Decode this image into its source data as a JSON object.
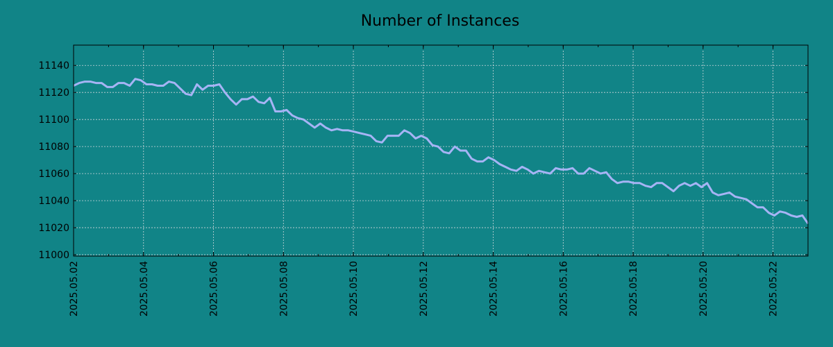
{
  "chart_data": {
    "type": "line",
    "title": "Number of Instances",
    "xlabel": "",
    "ylabel": "",
    "x_start": "2025.05.02",
    "x_end": "2025.05.23",
    "xlim": [
      "2025.05.02",
      "2025.05.23"
    ],
    "ylim": [
      10999,
      11155
    ],
    "grid": true,
    "x_ticks": [
      "2025.05.02",
      "2025.05.04",
      "2025.05.06",
      "2025.05.08",
      "2025.05.10",
      "2025.05.12",
      "2025.05.14",
      "2025.05.16",
      "2025.05.18",
      "2025.05.20",
      "2025.05.22"
    ],
    "y_ticks": [
      11000,
      11020,
      11040,
      11060,
      11080,
      11100,
      11120,
      11140
    ],
    "series": [
      {
        "color": "#a6b4f5",
        "values": [
          11125,
          11127,
          11128,
          11128,
          11127,
          11127,
          11124,
          11124,
          11127,
          11127,
          11125,
          11130,
          11129,
          11126,
          11126,
          11125,
          11125,
          11128,
          11127,
          11123,
          11119,
          11118,
          11126,
          11122,
          11125,
          11125,
          11126,
          11120,
          11115,
          11111,
          11115,
          11115,
          11117,
          11113,
          11112,
          11116,
          11106,
          11106,
          11107,
          11103,
          11101,
          11100,
          11097,
          11094,
          11097,
          11094,
          11092,
          11093,
          11092,
          11092,
          11091,
          11090,
          11089,
          11088,
          11084,
          11083,
          11088,
          11088,
          11088,
          11092,
          11090,
          11086,
          11088,
          11086,
          11081,
          11080,
          11076,
          11075,
          11080,
          11077,
          11077,
          11071,
          11069,
          11069,
          11072,
          11070,
          11067,
          11065,
          11063,
          11062,
          11065,
          11063,
          11060,
          11062,
          11061,
          11060,
          11064,
          11063,
          11063,
          11064,
          11060,
          11060,
          11064,
          11062,
          11060,
          11061,
          11056,
          11053,
          11054,
          11054,
          11053,
          11053,
          11051,
          11050,
          11053,
          11053,
          11050,
          11047,
          11051,
          11053,
          11051,
          11053,
          11050,
          11053,
          11046,
          11044,
          11045,
          11046,
          11043,
          11042,
          11041,
          11038,
          11035,
          11035,
          11031,
          11029,
          11032,
          11031,
          11029,
          11028,
          11029,
          11023
        ]
      }
    ]
  }
}
